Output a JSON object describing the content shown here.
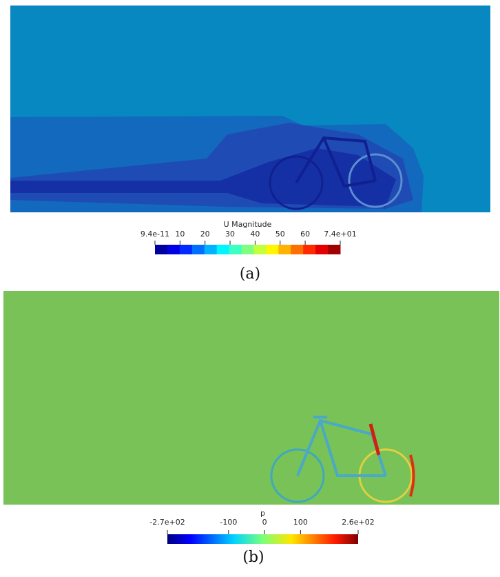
{
  "panels": [
    {
      "colorbar": {
        "title": "U Magnitude",
        "lim": [
          9.4e-11,
          74
        ],
        "ticks": [
          {
            "value": 9.4e-11,
            "label": "9.4e-11"
          },
          10,
          20,
          30,
          40,
          50,
          60,
          {
            "value": 74,
            "label": "7.4e+01"
          }
        ],
        "discrete": true
      },
      "caption": "(a)"
    },
    {
      "colorbar": {
        "title": "p",
        "lim": [
          -270,
          260
        ],
        "ticks": [
          {
            "value": -270,
            "label": "-2.7e+02"
          },
          -100,
          0,
          100,
          {
            "value": 260,
            "label": "2.6e+02"
          }
        ],
        "discrete": false
      },
      "caption": "(b)"
    }
  ]
}
